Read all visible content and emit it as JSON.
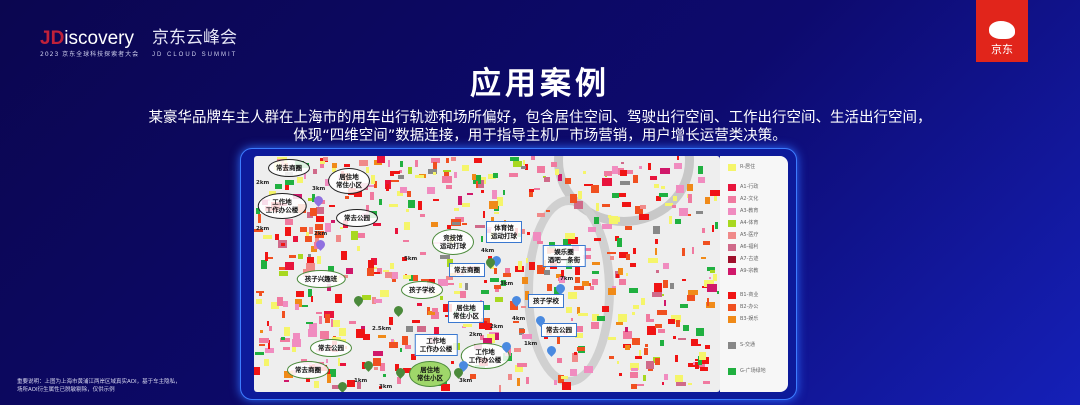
{
  "header": {
    "brand_prefix": "JD",
    "brand_suffix": "iscovery",
    "brand_sub": "2023 京东全球科技探索者大会",
    "summit_cn": "京东云峰会",
    "summit_en": "JD CLOUD SUMMIT",
    "jd_logo_text": "京东"
  },
  "title": "应用案例",
  "description": [
    "某豪华品牌车主人群在上海市的用车出行轨迹和场所偏好，包含居住空间、驾驶出行空间、工作出行空间、生活出行空间，",
    "体现“四维空间”数据连接，用于指导主机厂市场营销，用户增长运营类决策。"
  ],
  "legend": [
    {
      "label": "R-居住",
      "color": "#f5f56a"
    },
    {
      "label": "A1-行政",
      "color": "#e8143c"
    },
    {
      "label": "A2-文化",
      "color": "#f07aa0"
    },
    {
      "label": "A3-教育",
      "color": "#f08cc0"
    },
    {
      "label": "A4-体育",
      "color": "#a8d820"
    },
    {
      "label": "A5-医疗",
      "color": "#f08a8a"
    },
    {
      "label": "A6-福利",
      "color": "#d06a8a"
    },
    {
      "label": "A7-古迹",
      "color": "#a0102c"
    },
    {
      "label": "A9-宗教",
      "color": "#d0186a"
    },
    {
      "label": "B1-商业",
      "color": "#f01414"
    },
    {
      "label": "B2-办公",
      "color": "#f05020"
    },
    {
      "label": "B3-娱乐",
      "color": "#f08a18"
    },
    {
      "label": "S-交通",
      "color": "#888888"
    },
    {
      "label": "G-广场绿地",
      "color": "#20b040"
    }
  ],
  "callouts": [
    {
      "text": "常去商圈"
    },
    {
      "text": "居住地\n常住小区"
    },
    {
      "text": "工作地\n工作办公楼"
    },
    {
      "text": "常去公园"
    },
    {
      "text": "竞技馆\n运动打球"
    },
    {
      "text": "体育馆\n运动打球"
    },
    {
      "text": "娱乐圈\n酒吧一条街"
    },
    {
      "text": "常去商圈"
    },
    {
      "text": "孩子兴趣班"
    },
    {
      "text": "孩子学校"
    },
    {
      "text": "居住地\n常住小区"
    },
    {
      "text": "孩子学校"
    },
    {
      "text": "常去公园"
    },
    {
      "text": "工作地\n工作办公楼"
    },
    {
      "text": "工作地\n工作办公楼"
    },
    {
      "text": "常去公园"
    },
    {
      "text": "常去商圈"
    },
    {
      "text": "居住地\n常住小区"
    }
  ],
  "distances": [
    "2km",
    "3km",
    "2km",
    "2km",
    "5km",
    "4km",
    "7km",
    "3km",
    "2km",
    "4km",
    "1km",
    "2.5km",
    "2km",
    "1km",
    "3km",
    "3km"
  ],
  "note": [
    "重要说明：上图为上海市黄浦江两岸区域真实AOI，基于车主隐私，",
    "场所AOI衍生属性已脱敏剔除，仅供示例"
  ]
}
